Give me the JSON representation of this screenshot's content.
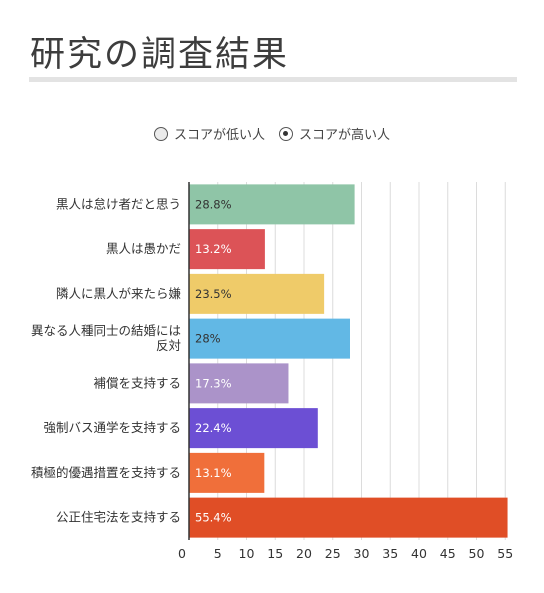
{
  "page": {
    "title": "研究の調査結果"
  },
  "legend": {
    "items": [
      {
        "label": "スコアが低い人",
        "selected": false
      },
      {
        "label": "スコアが高い人",
        "selected": true
      }
    ]
  },
  "chart_data": {
    "type": "bar",
    "orientation": "horizontal",
    "categories": [
      [
        "黒人は怠け者だと思う"
      ],
      [
        "黒人は愚かだ"
      ],
      [
        "隣人に黒人が来たら嫌"
      ],
      [
        "異なる人種同士の結婚には",
        "反対"
      ],
      [
        "補償を支持する"
      ],
      [
        "強制バス通学を支持する"
      ],
      [
        "積極的優遇措置を支持する"
      ],
      [
        "公正住宅法を支持する"
      ]
    ],
    "values": [
      28.8,
      13.2,
      23.5,
      28,
      17.3,
      22.4,
      13.1,
      55.4
    ],
    "value_labels": [
      "28.8%",
      "13.2%",
      "23.5%",
      "28%",
      "17.3%",
      "22.4%",
      "13.1%",
      "55.4%"
    ],
    "colors": [
      "#8fc5a7",
      "#dc5357",
      "#efcb69",
      "#62b8e5",
      "#ab93c9",
      "#6c4fd4",
      "#f06f3a",
      "#e04e26"
    ],
    "label_colors": [
      "#333333",
      "#ffffff",
      "#333333",
      "#333333",
      "#ffffff",
      "#ffffff",
      "#ffffff",
      "#ffffff"
    ],
    "xlim": [
      0,
      56
    ],
    "xticks": [
      0,
      5,
      10,
      15,
      20,
      25,
      30,
      35,
      40,
      45,
      50,
      55
    ],
    "grid": true
  }
}
